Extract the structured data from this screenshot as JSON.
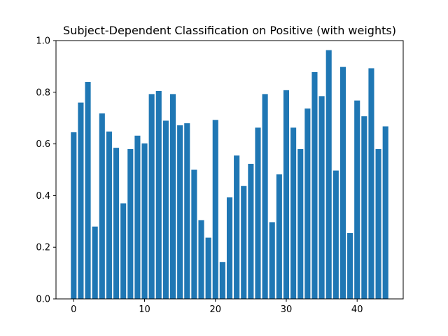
{
  "chart_data": {
    "type": "bar",
    "title": "Subject-Dependent Classification on Positive (with weights)",
    "xlabel": "",
    "ylabel": "",
    "x": [
      0,
      1,
      2,
      3,
      4,
      5,
      6,
      7,
      8,
      9,
      10,
      11,
      12,
      13,
      14,
      15,
      16,
      17,
      18,
      19,
      20,
      21,
      22,
      23,
      24,
      25,
      26,
      27,
      28,
      29,
      30,
      31,
      32,
      33,
      34,
      35,
      36,
      37,
      38,
      39,
      40,
      41,
      42,
      43,
      44
    ],
    "values": [
      0.645,
      0.76,
      0.84,
      0.28,
      0.718,
      0.648,
      0.585,
      0.37,
      0.58,
      0.632,
      0.602,
      0.793,
      0.805,
      0.69,
      0.793,
      0.672,
      0.68,
      0.5,
      0.305,
      0.237,
      0.693,
      0.143,
      0.393,
      0.555,
      0.437,
      0.523,
      0.663,
      0.793,
      0.297,
      0.482,
      0.808,
      0.663,
      0.58,
      0.737,
      0.878,
      0.785,
      0.963,
      0.497,
      0.898,
      0.255,
      0.768,
      0.707,
      0.893,
      0.58,
      0.668
    ],
    "xlim": [
      -2.5,
      46.5
    ],
    "ylim": [
      0,
      1.0
    ],
    "xticks": [
      0,
      10,
      20,
      30,
      40
    ],
    "xtick_labels": [
      "0",
      "10",
      "20",
      "30",
      "40"
    ],
    "yticks": [
      0.0,
      0.2,
      0.4,
      0.6,
      0.8,
      1.0
    ],
    "ytick_labels": [
      "0.0",
      "0.2",
      "0.4",
      "0.6",
      "0.8",
      "1.0"
    ],
    "bar_color": "#1f77b4",
    "grid": false,
    "legend": false
  }
}
